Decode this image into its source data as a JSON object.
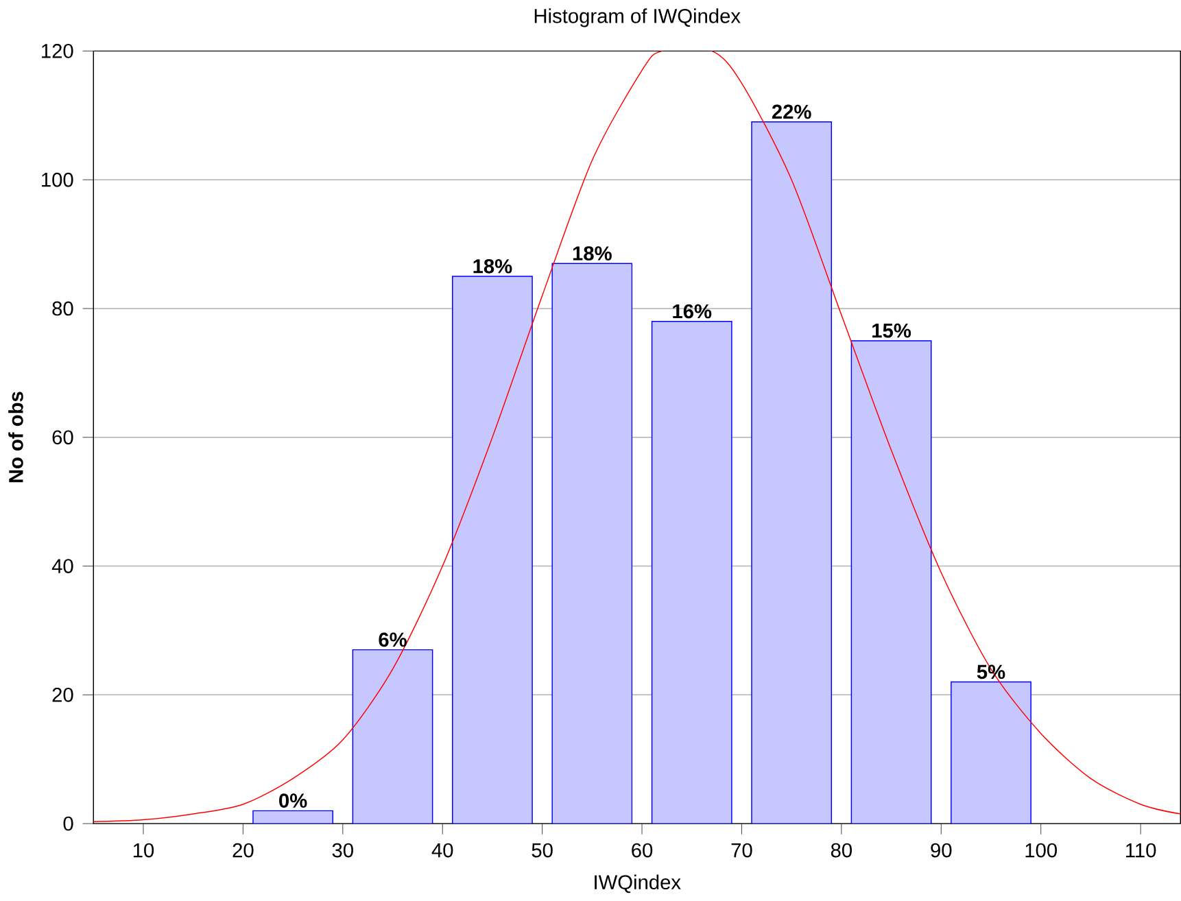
{
  "chart_data": {
    "type": "histogram",
    "title": "Histogram of IWQindex",
    "xlabel": "IWQindex",
    "ylabel": "No of obs",
    "series": [
      {
        "color": "#0000ff",
        "bins": [
          20,
          30,
          40,
          50,
          60,
          70,
          80,
          90,
          100
        ],
        "values": [
          2,
          27,
          85,
          87,
          78,
          109,
          75,
          22
        ]
      },
      {
        "type": "line",
        "color": "#ff0000",
        "x": [
          5,
          10,
          15,
          20,
          25,
          30,
          35,
          40,
          45,
          50,
          55,
          60,
          62,
          67,
          70,
          75,
          80,
          85,
          90,
          95,
          100,
          105,
          110,
          114
        ],
        "values": [
          0.3,
          0.6,
          1.5,
          3,
          7,
          13,
          24,
          40,
          60,
          82,
          103,
          117,
          120,
          120,
          115,
          100,
          79,
          58,
          39,
          24,
          14,
          7,
          3,
          1.5
        ]
      }
    ],
    "annotations": [
      {
        "text": "0%",
        "x": 25,
        "y": 2
      },
      {
        "text": "6%",
        "x": 35,
        "y": 27
      },
      {
        "text": "18%",
        "x": 45,
        "y": 85
      },
      {
        "text": "18%",
        "x": 55,
        "y": 87
      },
      {
        "text": "16%",
        "x": 65,
        "y": 78
      },
      {
        "text": "22%",
        "x": 75,
        "y": 109
      },
      {
        "text": "15%",
        "x": 85,
        "y": 75
      },
      {
        "text": "5%",
        "x": 95,
        "y": 22
      }
    ],
    "xlim": [
      5,
      114
    ],
    "ylim": [
      0,
      120
    ],
    "xticks": [
      10,
      20,
      30,
      40,
      50,
      60,
      70,
      80,
      90,
      100,
      110
    ],
    "yticks": [
      0,
      20,
      40,
      60,
      80,
      100,
      120
    ],
    "grid": "y"
  }
}
